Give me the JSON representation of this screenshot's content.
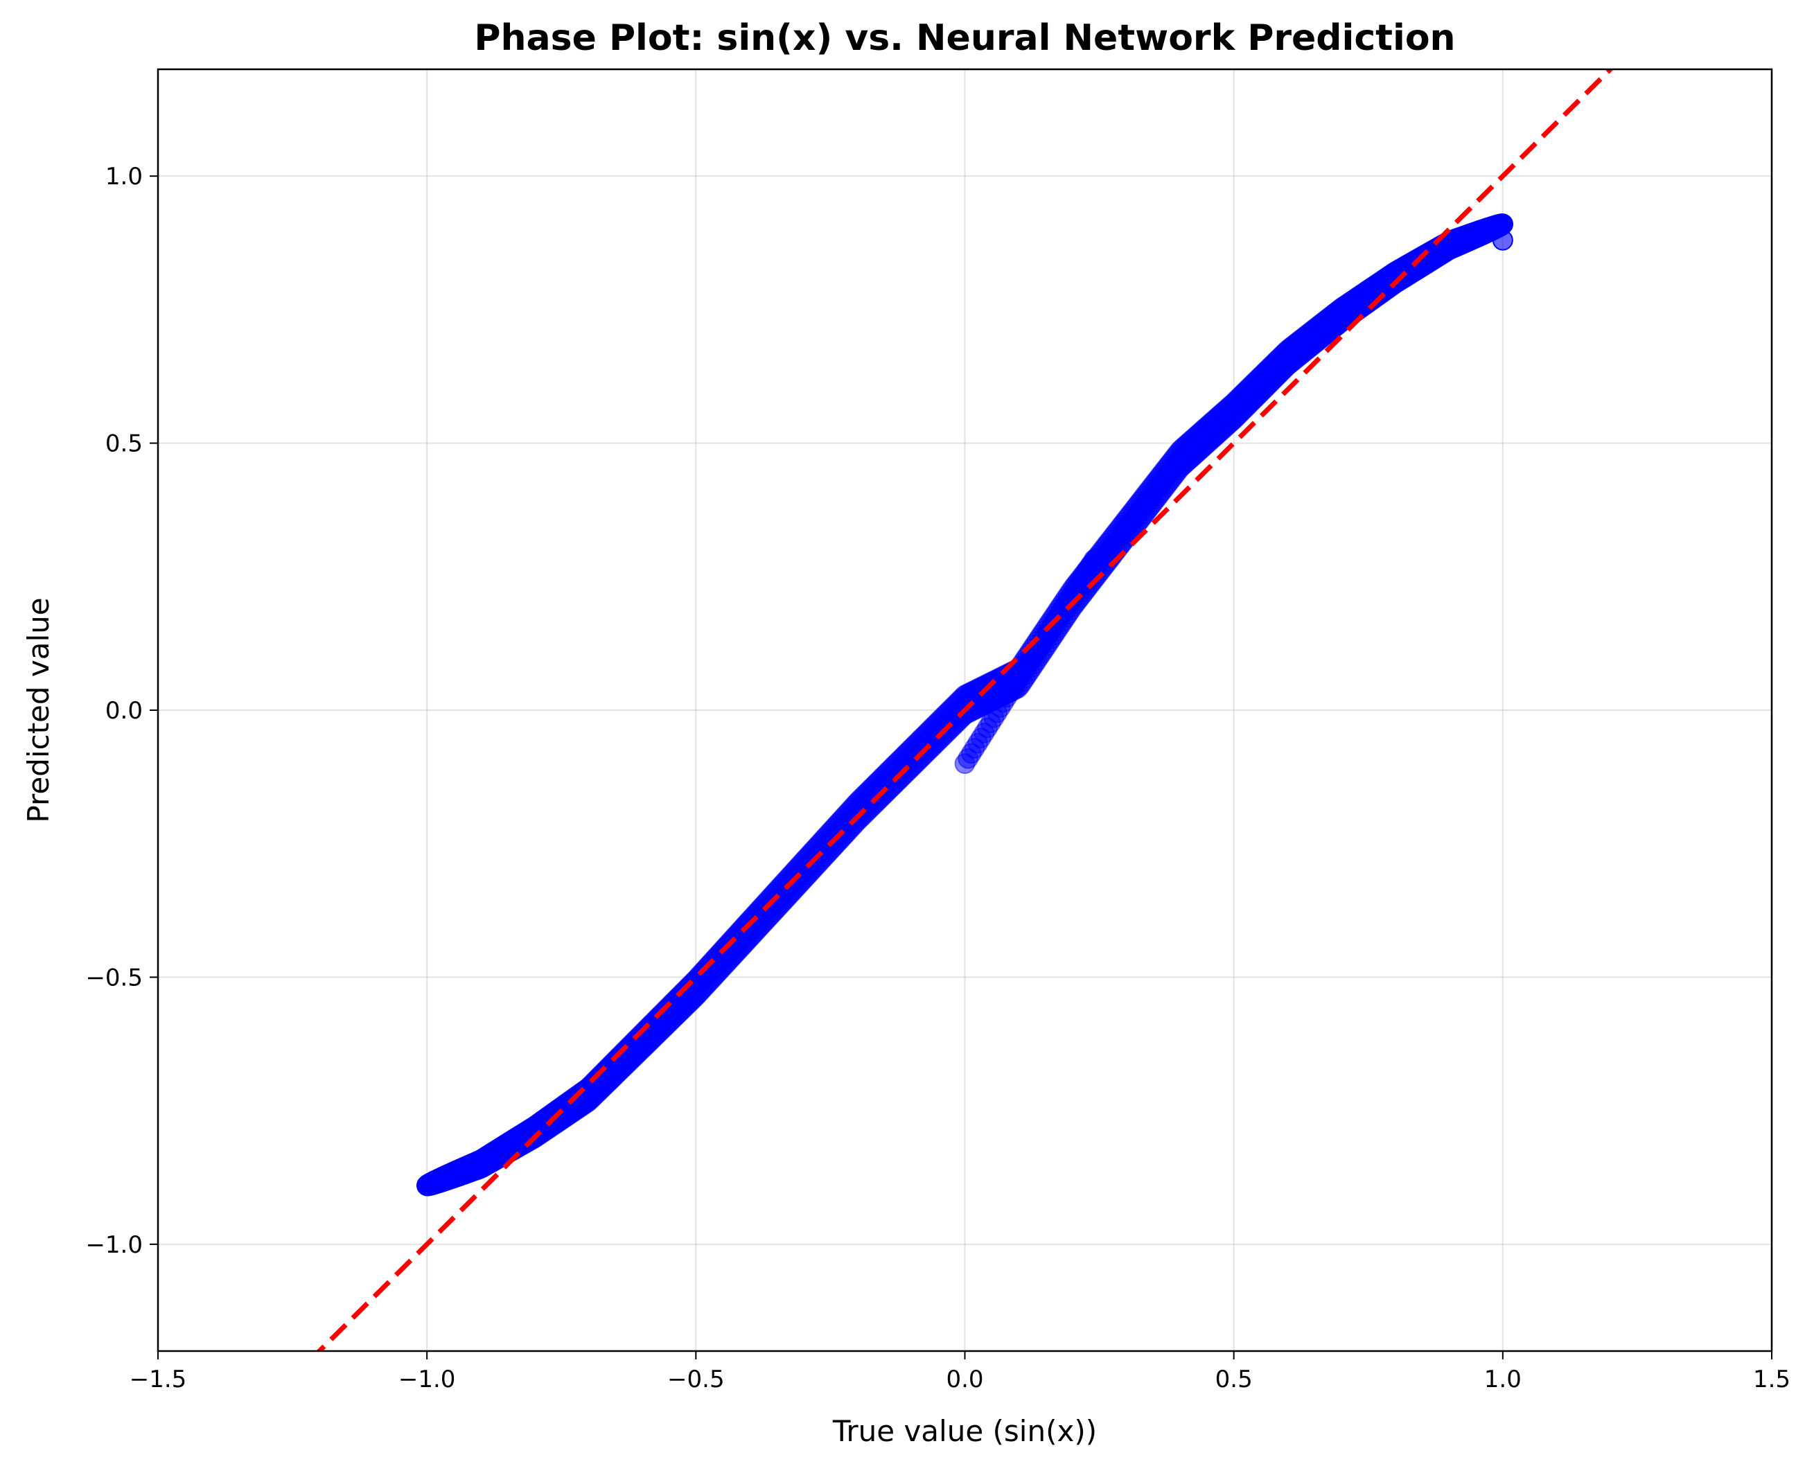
{
  "chart_data": {
    "type": "scatter",
    "title": "Phase Plot: sin(x) vs. Neural Network Prediction",
    "xlabel": "True value (sin(x))",
    "ylabel": "Predicted value",
    "xlim": [
      -1.5,
      1.5
    ],
    "ylim": [
      -1.2,
      1.2
    ],
    "xticks": [
      -1.5,
      -1.0,
      -0.5,
      0.0,
      0.5,
      1.0,
      1.5
    ],
    "xtick_labels": [
      "−1.5",
      "−1.0",
      "−0.5",
      "0.0",
      "0.5",
      "1.0",
      "1.5"
    ],
    "yticks": [
      -1.0,
      -0.5,
      0.0,
      0.5,
      1.0
    ],
    "ytick_labels": [
      "−1.0",
      "−0.5",
      "0.0",
      "0.5",
      "1.0"
    ],
    "grid": true,
    "series": [
      {
        "kind": "scatter",
        "color": "#0000ff",
        "alpha": 0.5,
        "description_points": [
          {
            "x": -1.0,
            "y": -0.89
          },
          {
            "x": -0.9,
            "y": -0.85
          },
          {
            "x": -0.8,
            "y": -0.79
          },
          {
            "x": -0.7,
            "y": -0.72
          },
          {
            "x": -0.6,
            "y": -0.62
          },
          {
            "x": -0.5,
            "y": -0.52
          },
          {
            "x": -0.4,
            "y": -0.41
          },
          {
            "x": -0.3,
            "y": -0.3
          },
          {
            "x": -0.2,
            "y": -0.19
          },
          {
            "x": -0.1,
            "y": -0.09
          },
          {
            "x": 0.0,
            "y": 0.01
          },
          {
            "x": 0.0,
            "y": -0.1
          },
          {
            "x": 0.1,
            "y": 0.06
          },
          {
            "x": 0.2,
            "y": 0.21
          },
          {
            "x": 0.3,
            "y": 0.34
          },
          {
            "x": 0.4,
            "y": 0.47
          },
          {
            "x": 0.5,
            "y": 0.56
          },
          {
            "x": 0.6,
            "y": 0.66
          },
          {
            "x": 0.7,
            "y": 0.74
          },
          {
            "x": 0.8,
            "y": 0.81
          },
          {
            "x": 0.9,
            "y": 0.87
          },
          {
            "x": 1.0,
            "y": 0.91
          },
          {
            "x": 1.0,
            "y": 0.88
          }
        ]
      },
      {
        "kind": "line",
        "style": "dashed",
        "color": "#ff0000",
        "x": [
          -1.5,
          1.5
        ],
        "y": [
          -1.5,
          1.5
        ]
      }
    ]
  }
}
